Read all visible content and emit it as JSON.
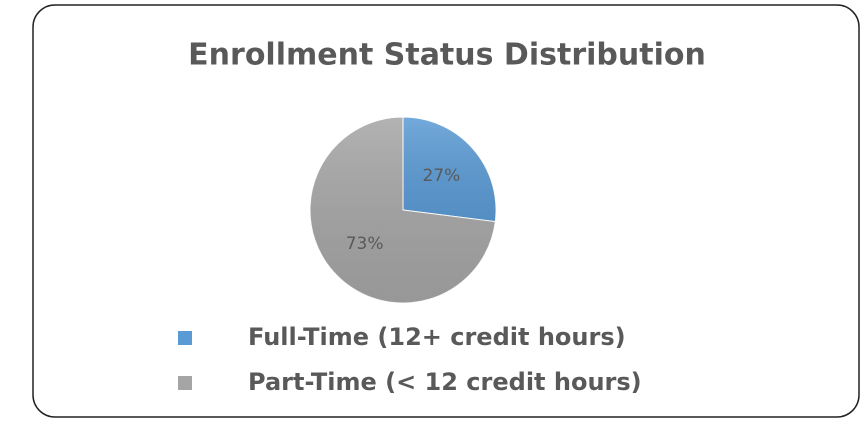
{
  "chart_data": {
    "type": "pie",
    "title": "Enrollment Status Distribution",
    "categories": [
      "Full-Time (12+ credit hours)",
      "Part-Time (< 12 credit hours)"
    ],
    "values": [
      27,
      73
    ],
    "value_labels": [
      "27%",
      "73%"
    ],
    "colors": [
      "#5b9bd5",
      "#a5a5a5"
    ],
    "legend": "bottom"
  }
}
